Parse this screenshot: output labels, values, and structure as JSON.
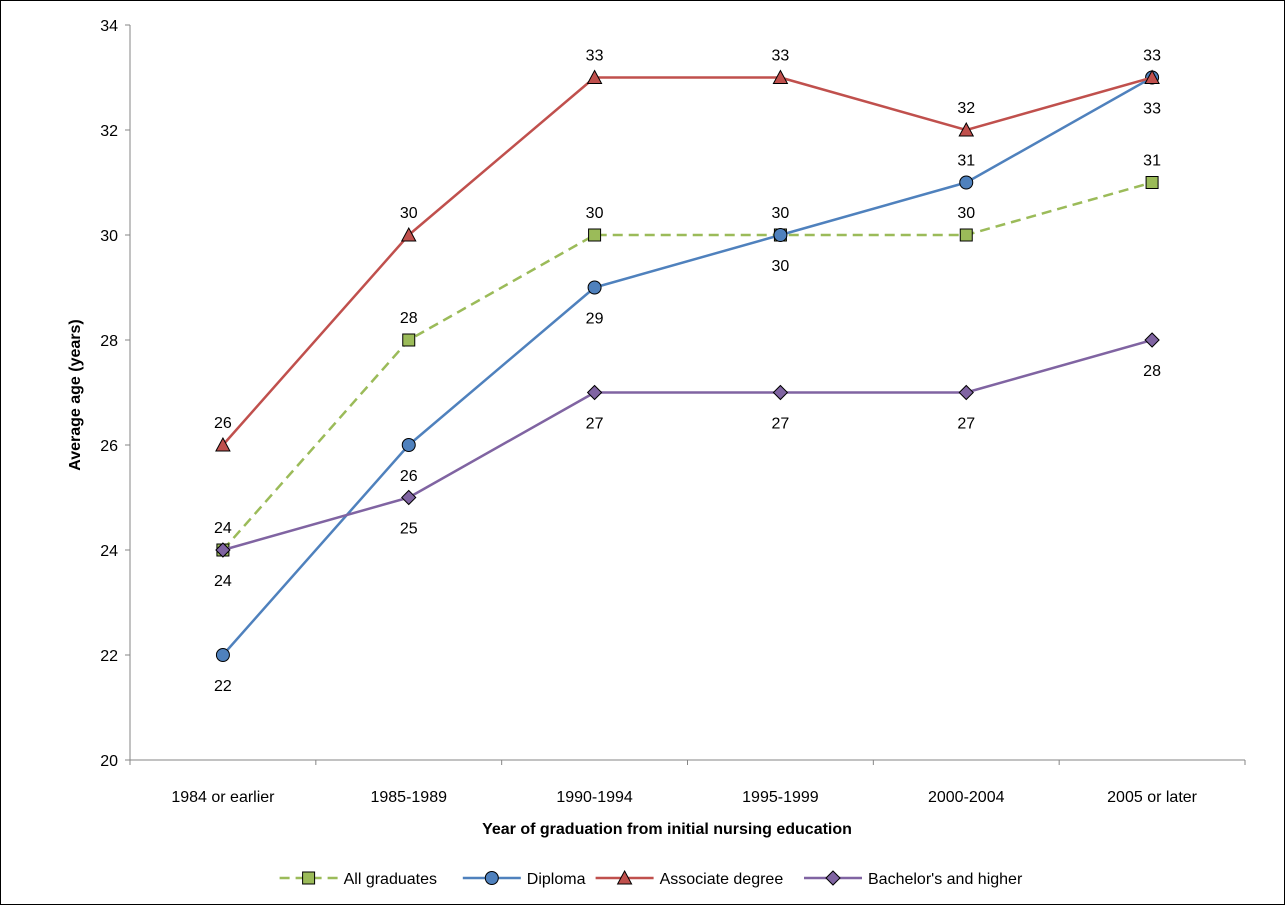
{
  "chart_data": {
    "type": "line",
    "title": "",
    "xlabel": "Year of graduation from initial nursing education",
    "ylabel": "Average age (years)",
    "categories": [
      "1984 or earlier",
      "1985-1989",
      "1990-1994",
      "1995-1999",
      "2000-2004",
      "2005 or later"
    ],
    "ylim": [
      20,
      34
    ],
    "yticks": [
      20,
      22,
      24,
      26,
      28,
      30,
      32,
      34
    ],
    "grid": false,
    "legend_position": "bottom",
    "series": [
      {
        "name": "All graduates",
        "values": [
          24,
          28,
          30,
          30,
          30,
          31
        ],
        "color": "#9BBB59",
        "marker": "square",
        "dashed": true,
        "label_pos": [
          "above",
          "above",
          "above",
          "above",
          "above",
          "above"
        ]
      },
      {
        "name": "Diploma",
        "values": [
          22,
          26,
          29,
          30,
          31,
          33
        ],
        "color": "#4F81BD",
        "marker": "circle",
        "dashed": false,
        "label_pos": [
          "below",
          "below",
          "below",
          "below",
          "above",
          "below"
        ]
      },
      {
        "name": "Associate degree",
        "values": [
          26,
          30,
          33,
          33,
          32,
          33
        ],
        "color": "#C0504D",
        "marker": "triangle",
        "dashed": false,
        "label_pos": [
          "above",
          "above",
          "above",
          "above",
          "above",
          "above"
        ]
      },
      {
        "name": "Bachelor's and higher",
        "values": [
          24,
          25,
          27,
          27,
          27,
          28
        ],
        "color": "#8064A2",
        "marker": "diamond",
        "dashed": false,
        "label_pos": [
          "below",
          "below",
          "below",
          "below",
          "below",
          "below"
        ]
      }
    ]
  }
}
